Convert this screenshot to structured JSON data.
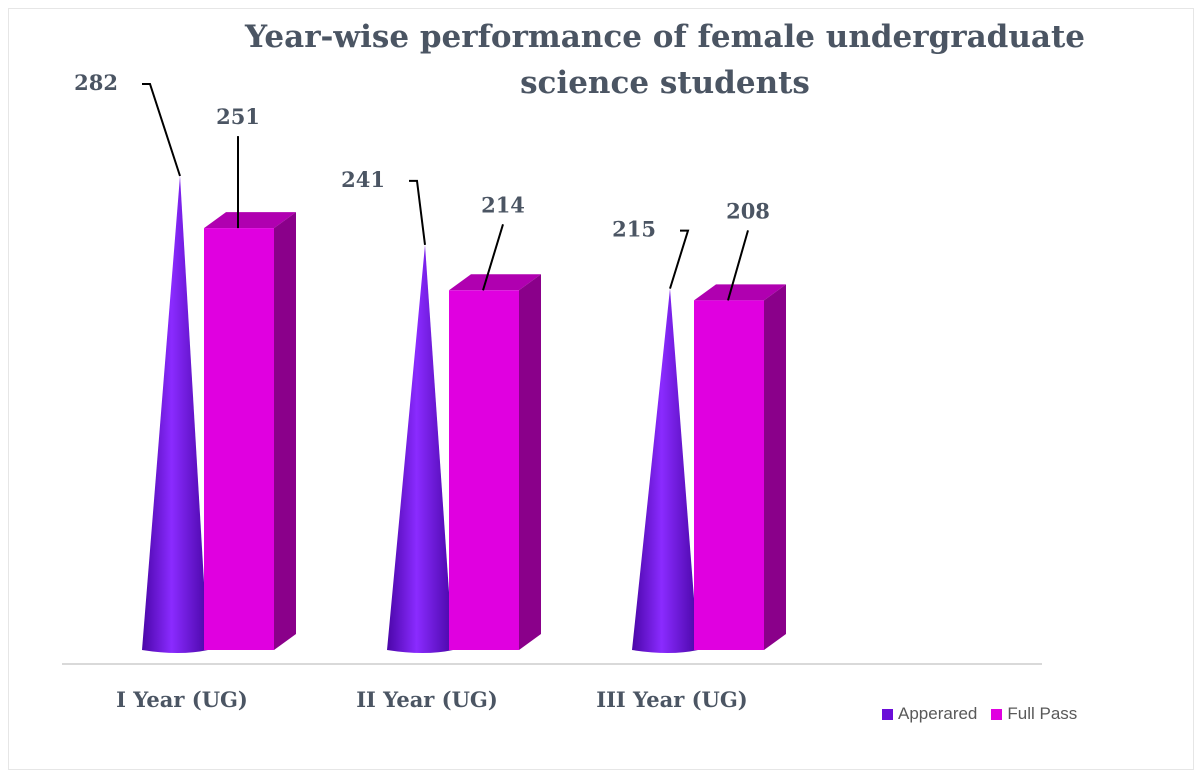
{
  "chart_data": {
    "type": "bar",
    "title": "Year-wise performance of female undergraduate science students",
    "categories": [
      "I Year (UG)",
      "II Year (UG)",
      "III Year (UG)"
    ],
    "series": [
      {
        "name": "Apperared",
        "values": [
          282,
          241,
          215
        ],
        "color": "#6a0dd8",
        "shape": "cone"
      },
      {
        "name": "Full Pass",
        "values": [
          251,
          214,
          208
        ],
        "color": "#e000e0",
        "shape": "box"
      }
    ],
    "legend": "bottom-right",
    "grid": false
  }
}
